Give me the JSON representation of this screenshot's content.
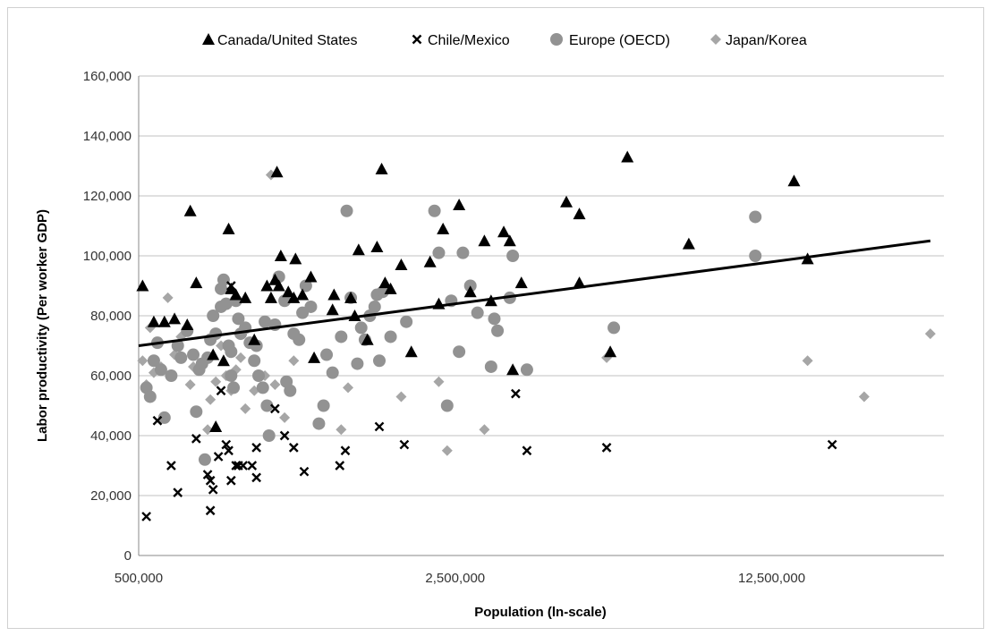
{
  "chart_data": {
    "type": "scatter",
    "title": "",
    "xlabel": "Population (ln-scale)",
    "ylabel": "Labor productivity (Per worker GDP)",
    "x_scale": "log",
    "xlim": [
      500000,
      30000000
    ],
    "ylim": [
      0,
      160000
    ],
    "x_ticks": [
      500000,
      2500000,
      12500000
    ],
    "x_tick_labels": [
      "500,000",
      "2,500,000",
      "12,500,000"
    ],
    "y_ticks": [
      0,
      20000,
      40000,
      60000,
      80000,
      100000,
      120000,
      140000,
      160000
    ],
    "y_tick_labels": [
      "0",
      "20,000",
      "40,000",
      "60,000",
      "80,000",
      "100,000",
      "120,000",
      "140,000",
      "160,000"
    ],
    "grid": "horizontal",
    "legend_position": "top",
    "colors": {
      "black": "#000000",
      "gray": "#929292",
      "light_gray": "#a6a6a6",
      "grid": "#c0c0c0"
    },
    "series": [
      {
        "name": "Canada/United States",
        "marker": "triangle",
        "points": [
          [
            510000,
            90000
          ],
          [
            540000,
            78000
          ],
          [
            570000,
            78000
          ],
          [
            600000,
            79000
          ],
          [
            640000,
            77000
          ],
          [
            650000,
            115000
          ],
          [
            670000,
            91000
          ],
          [
            730000,
            67000
          ],
          [
            740000,
            43000
          ],
          [
            770000,
            65000
          ],
          [
            790000,
            109000
          ],
          [
            800000,
            89000
          ],
          [
            820000,
            87000
          ],
          [
            860000,
            86000
          ],
          [
            900000,
            72000
          ],
          [
            960000,
            90000
          ],
          [
            980000,
            86000
          ],
          [
            1000000,
            92000
          ],
          [
            1010000,
            128000
          ],
          [
            1020000,
            90000
          ],
          [
            1030000,
            100000
          ],
          [
            1070000,
            88000
          ],
          [
            1100000,
            86000
          ],
          [
            1110000,
            99000
          ],
          [
            1150000,
            87000
          ],
          [
            1200000,
            93000
          ],
          [
            1220000,
            66000
          ],
          [
            1340000,
            82000
          ],
          [
            1350000,
            87000
          ],
          [
            1470000,
            86000
          ],
          [
            1500000,
            80000
          ],
          [
            1530000,
            102000
          ],
          [
            1600000,
            72000
          ],
          [
            1680000,
            103000
          ],
          [
            1720000,
            129000
          ],
          [
            1750000,
            91000
          ],
          [
            1800000,
            89000
          ],
          [
            1900000,
            97000
          ],
          [
            2000000,
            68000
          ],
          [
            2200000,
            98000
          ],
          [
            2300000,
            84000
          ],
          [
            2350000,
            109000
          ],
          [
            2550000,
            117000
          ],
          [
            2700000,
            88000
          ],
          [
            2900000,
            105000
          ],
          [
            3000000,
            85000
          ],
          [
            3200000,
            108000
          ],
          [
            3300000,
            105000
          ],
          [
            3350000,
            62000
          ],
          [
            3500000,
            91000
          ],
          [
            4400000,
            118000
          ],
          [
            4700000,
            114000
          ],
          [
            4700000,
            91000
          ],
          [
            5500000,
            68000
          ],
          [
            6000000,
            133000
          ],
          [
            8200000,
            104000
          ],
          [
            14000000,
            125000
          ],
          [
            15000000,
            99000
          ]
        ]
      },
      {
        "name": "Chile/Mexico",
        "marker": "x",
        "points": [
          [
            520000,
            13000
          ],
          [
            550000,
            45000
          ],
          [
            590000,
            30000
          ],
          [
            610000,
            21000
          ],
          [
            670000,
            39000
          ],
          [
            710000,
            27000
          ],
          [
            720000,
            25000
          ],
          [
            720000,
            15000
          ],
          [
            730000,
            22000
          ],
          [
            750000,
            33000
          ],
          [
            760000,
            55000
          ],
          [
            780000,
            37000
          ],
          [
            790000,
            35000
          ],
          [
            800000,
            90000
          ],
          [
            800000,
            25000
          ],
          [
            820000,
            30000
          ],
          [
            830000,
            30000
          ],
          [
            850000,
            30000
          ],
          [
            890000,
            30000
          ],
          [
            910000,
            26000
          ],
          [
            910000,
            36000
          ],
          [
            1000000,
            49000
          ],
          [
            1050000,
            40000
          ],
          [
            1100000,
            36000
          ],
          [
            1160000,
            28000
          ],
          [
            1390000,
            30000
          ],
          [
            1430000,
            35000
          ],
          [
            1700000,
            43000
          ],
          [
            1930000,
            37000
          ],
          [
            3400000,
            54000
          ],
          [
            3600000,
            35000
          ],
          [
            5400000,
            36000
          ],
          [
            17000000,
            37000
          ]
        ]
      },
      {
        "name": "Europe (OECD)",
        "marker": "circle",
        "points": [
          [
            520000,
            56000
          ],
          [
            530000,
            53000
          ],
          [
            540000,
            65000
          ],
          [
            550000,
            71000
          ],
          [
            560000,
            62000
          ],
          [
            570000,
            46000
          ],
          [
            590000,
            60000
          ],
          [
            610000,
            70000
          ],
          [
            620000,
            66000
          ],
          [
            640000,
            75000
          ],
          [
            660000,
            67000
          ],
          [
            670000,
            48000
          ],
          [
            680000,
            62000
          ],
          [
            690000,
            64000
          ],
          [
            700000,
            32000
          ],
          [
            710000,
            66000
          ],
          [
            720000,
            72000
          ],
          [
            730000,
            80000
          ],
          [
            740000,
            74000
          ],
          [
            760000,
            89000
          ],
          [
            760000,
            83000
          ],
          [
            770000,
            92000
          ],
          [
            780000,
            84000
          ],
          [
            790000,
            70000
          ],
          [
            800000,
            68000
          ],
          [
            800000,
            60000
          ],
          [
            810000,
            56000
          ],
          [
            820000,
            85000
          ],
          [
            830000,
            79000
          ],
          [
            840000,
            74000
          ],
          [
            860000,
            76000
          ],
          [
            880000,
            71000
          ],
          [
            900000,
            65000
          ],
          [
            910000,
            70000
          ],
          [
            920000,
            60000
          ],
          [
            940000,
            56000
          ],
          [
            950000,
            78000
          ],
          [
            960000,
            50000
          ],
          [
            970000,
            40000
          ],
          [
            1000000,
            77000
          ],
          [
            1020000,
            93000
          ],
          [
            1050000,
            85000
          ],
          [
            1060000,
            58000
          ],
          [
            1080000,
            55000
          ],
          [
            1100000,
            74000
          ],
          [
            1130000,
            72000
          ],
          [
            1150000,
            81000
          ],
          [
            1170000,
            90000
          ],
          [
            1200000,
            83000
          ],
          [
            1250000,
            44000
          ],
          [
            1280000,
            50000
          ],
          [
            1300000,
            67000
          ],
          [
            1340000,
            61000
          ],
          [
            1400000,
            73000
          ],
          [
            1440000,
            115000
          ],
          [
            1470000,
            86000
          ],
          [
            1520000,
            64000
          ],
          [
            1550000,
            76000
          ],
          [
            1580000,
            72000
          ],
          [
            1620000,
            80000
          ],
          [
            1660000,
            83000
          ],
          [
            1680000,
            87000
          ],
          [
            1700000,
            65000
          ],
          [
            1730000,
            88000
          ],
          [
            1800000,
            73000
          ],
          [
            1950000,
            78000
          ],
          [
            2250000,
            115000
          ],
          [
            2300000,
            101000
          ],
          [
            2400000,
            50000
          ],
          [
            2450000,
            85000
          ],
          [
            2550000,
            68000
          ],
          [
            2600000,
            101000
          ],
          [
            2700000,
            90000
          ],
          [
            2800000,
            81000
          ],
          [
            3000000,
            63000
          ],
          [
            3050000,
            79000
          ],
          [
            3100000,
            75000
          ],
          [
            3300000,
            86000
          ],
          [
            3350000,
            100000
          ],
          [
            3600000,
            62000
          ],
          [
            5600000,
            76000
          ],
          [
            11500000,
            113000
          ],
          [
            11500000,
            100000
          ]
        ]
      },
      {
        "name": "Japan/Korea",
        "marker": "diamond",
        "points": [
          [
            510000,
            65000
          ],
          [
            520000,
            57000
          ],
          [
            530000,
            76000
          ],
          [
            540000,
            61000
          ],
          [
            560000,
            63000
          ],
          [
            580000,
            86000
          ],
          [
            600000,
            67000
          ],
          [
            620000,
            73000
          ],
          [
            650000,
            57000
          ],
          [
            660000,
            63000
          ],
          [
            700000,
            65000
          ],
          [
            710000,
            42000
          ],
          [
            720000,
            52000
          ],
          [
            740000,
            58000
          ],
          [
            760000,
            70000
          ],
          [
            780000,
            60000
          ],
          [
            800000,
            55000
          ],
          [
            820000,
            62000
          ],
          [
            840000,
            66000
          ],
          [
            860000,
            49000
          ],
          [
            900000,
            55000
          ],
          [
            950000,
            60000
          ],
          [
            980000,
            127000
          ],
          [
            1000000,
            57000
          ],
          [
            1050000,
            46000
          ],
          [
            1100000,
            65000
          ],
          [
            1400000,
            42000
          ],
          [
            1450000,
            56000
          ],
          [
            1900000,
            53000
          ],
          [
            2300000,
            58000
          ],
          [
            2400000,
            35000
          ],
          [
            2900000,
            42000
          ],
          [
            5400000,
            66000
          ],
          [
            15000000,
            65000
          ],
          [
            20000000,
            53000
          ],
          [
            28000000,
            74000
          ]
        ]
      }
    ],
    "trendline": {
      "color": "#000000",
      "points": [
        [
          500000,
          70000
        ],
        [
          28000000,
          105000
        ]
      ]
    }
  }
}
